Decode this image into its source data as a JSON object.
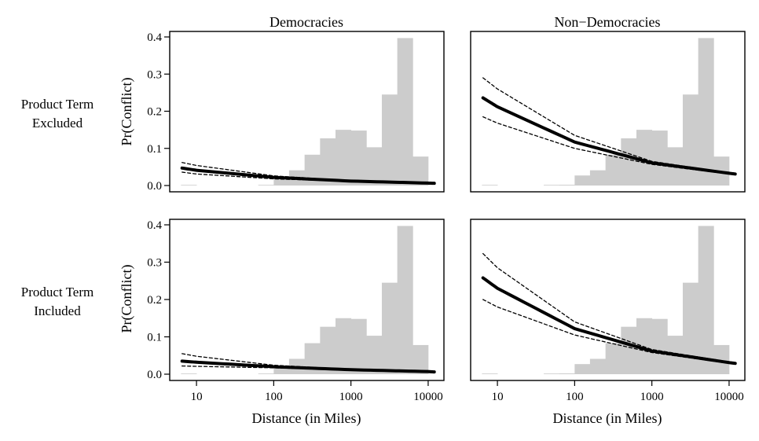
{
  "figure": {
    "col_titles": [
      "Democracies",
      "Non−Democracies"
    ],
    "row_labels": [
      [
        "Product Term",
        "Excluded"
      ],
      [
        "Product Term",
        "Included"
      ]
    ],
    "ylabel": "Pr(Conflict)",
    "xlabel": "Distance (in Miles)",
    "colors": {
      "histogram": "#cccccc",
      "curve": "#000000",
      "frame": "#000000"
    }
  },
  "chart_data": [
    {
      "type": "line",
      "panel": "Democracies / Product Term Excluded",
      "x_scale": "log",
      "xlim": [
        4.5,
        16000
      ],
      "ylim": [
        0,
        0.4
      ],
      "xticks": [
        10,
        100,
        1000,
        10000
      ],
      "xtick_labels": [
        "10",
        "100",
        "1000",
        "10000"
      ],
      "yticks": [
        0.0,
        0.1,
        0.2,
        0.3,
        0.4
      ],
      "ytick_labels": [
        "0.0",
        "0.1",
        "0.2",
        "0.3",
        "0.4"
      ],
      "show_x_ticklabels": false,
      "show_y_ticklabels": true,
      "histogram": {
        "bin_edges": [
          6.3,
          10,
          15.8,
          25.1,
          39.8,
          63.1,
          100,
          158,
          251,
          398,
          631,
          1000,
          1585,
          2512,
          3981,
          6310,
          10000
        ],
        "values": [
          0.001,
          0,
          0,
          0,
          0,
          0.001,
          0.02,
          0.041,
          0.083,
          0.127,
          0.15,
          0.148,
          0.103,
          0.245,
          0.397,
          0.078
        ]
      },
      "series": [
        {
          "role": "estimate",
          "style": "solid",
          "x": [
            6.5,
            10,
            100,
            1000,
            10000,
            12000
          ],
          "y": [
            0.047,
            0.041,
            0.022,
            0.012,
            0.0065,
            0.006
          ]
        },
        {
          "role": "upper",
          "style": "dashed",
          "x": [
            6.5,
            10,
            100,
            1000,
            10000,
            12000
          ],
          "y": [
            0.062,
            0.054,
            0.026,
            0.013,
            0.0075,
            0.007
          ]
        },
        {
          "role": "lower",
          "style": "dashed",
          "x": [
            6.5,
            10,
            100,
            1000,
            10000,
            12000
          ],
          "y": [
            0.036,
            0.031,
            0.018,
            0.011,
            0.0055,
            0.005
          ]
        }
      ]
    },
    {
      "type": "line",
      "panel": "Non-Democracies / Product Term Excluded",
      "x_scale": "log",
      "xlim": [
        4.5,
        16000
      ],
      "ylim": [
        0,
        0.4
      ],
      "xticks": [
        10,
        100,
        1000,
        10000
      ],
      "xtick_labels": [
        "10",
        "100",
        "1000",
        "10000"
      ],
      "yticks": [
        0.0,
        0.1,
        0.2,
        0.3,
        0.4
      ],
      "ytick_labels": [
        "0.0",
        "0.1",
        "0.2",
        "0.3",
        "0.4"
      ],
      "show_x_ticklabels": false,
      "show_y_ticklabels": false,
      "histogram": {
        "bin_edges": [
          6.3,
          10,
          15.8,
          25.1,
          39.8,
          63.1,
          100,
          158,
          251,
          398,
          631,
          1000,
          1585,
          2512,
          3981,
          6310,
          10000
        ],
        "values": [
          0.001,
          0,
          0,
          0,
          0.001,
          0.002,
          0.027,
          0.041,
          0.083,
          0.127,
          0.15,
          0.148,
          0.103,
          0.245,
          0.397,
          0.078
        ]
      },
      "series": [
        {
          "role": "estimate",
          "style": "solid",
          "x": [
            6.5,
            10,
            100,
            1000,
            10000,
            12000
          ],
          "y": [
            0.236,
            0.212,
            0.117,
            0.061,
            0.033,
            0.031
          ]
        },
        {
          "role": "upper",
          "style": "dashed",
          "x": [
            6.5,
            10,
            100,
            1000,
            10000,
            12000
          ],
          "y": [
            0.29,
            0.26,
            0.135,
            0.065,
            0.034,
            0.032
          ]
        },
        {
          "role": "lower",
          "style": "dashed",
          "x": [
            6.5,
            10,
            100,
            1000,
            10000,
            12000
          ],
          "y": [
            0.185,
            0.168,
            0.1,
            0.057,
            0.031,
            0.03
          ]
        }
      ]
    },
    {
      "type": "line",
      "panel": "Democracies / Product Term Included",
      "x_scale": "log",
      "xlim": [
        4.5,
        16000
      ],
      "ylim": [
        0,
        0.4
      ],
      "xticks": [
        10,
        100,
        1000,
        10000
      ],
      "xtick_labels": [
        "10",
        "100",
        "1000",
        "10000"
      ],
      "yticks": [
        0.0,
        0.1,
        0.2,
        0.3,
        0.4
      ],
      "ytick_labels": [
        "0.0",
        "0.1",
        "0.2",
        "0.3",
        "0.4"
      ],
      "show_x_ticklabels": true,
      "show_y_ticklabels": true,
      "histogram": {
        "bin_edges": [
          6.3,
          10,
          15.8,
          25.1,
          39.8,
          63.1,
          100,
          158,
          251,
          398,
          631,
          1000,
          1585,
          2512,
          3981,
          6310,
          10000
        ],
        "values": [
          0.001,
          0,
          0,
          0,
          0,
          0.001,
          0.02,
          0.041,
          0.083,
          0.127,
          0.15,
          0.148,
          0.103,
          0.245,
          0.397,
          0.078
        ]
      },
      "series": [
        {
          "role": "estimate",
          "style": "solid",
          "x": [
            6.5,
            10,
            100,
            1000,
            10000,
            12000
          ],
          "y": [
            0.035,
            0.032,
            0.02,
            0.012,
            0.007,
            0.006
          ]
        },
        {
          "role": "upper",
          "style": "dashed",
          "x": [
            6.5,
            10,
            100,
            1000,
            10000,
            12000
          ],
          "y": [
            0.055,
            0.048,
            0.024,
            0.013,
            0.008,
            0.007
          ]
        },
        {
          "role": "lower",
          "style": "dashed",
          "x": [
            6.5,
            10,
            100,
            1000,
            10000,
            12000
          ],
          "y": [
            0.022,
            0.021,
            0.017,
            0.011,
            0.006,
            0.005
          ]
        }
      ]
    },
    {
      "type": "line",
      "panel": "Non-Democracies / Product Term Included",
      "x_scale": "log",
      "xlim": [
        4.5,
        16000
      ],
      "ylim": [
        0,
        0.4
      ],
      "xticks": [
        10,
        100,
        1000,
        10000
      ],
      "xtick_labels": [
        "10",
        "100",
        "1000",
        "10000"
      ],
      "yticks": [
        0.0,
        0.1,
        0.2,
        0.3,
        0.4
      ],
      "ytick_labels": [
        "0.0",
        "0.1",
        "0.2",
        "0.3",
        "0.4"
      ],
      "show_x_ticklabels": true,
      "show_y_ticklabels": false,
      "histogram": {
        "bin_edges": [
          6.3,
          10,
          15.8,
          25.1,
          39.8,
          63.1,
          100,
          158,
          251,
          398,
          631,
          1000,
          1585,
          2512,
          3981,
          6310,
          10000
        ],
        "values": [
          0.001,
          0,
          0,
          0,
          0.001,
          0.002,
          0.027,
          0.041,
          0.083,
          0.127,
          0.15,
          0.148,
          0.103,
          0.245,
          0.397,
          0.078
        ]
      },
      "series": [
        {
          "role": "estimate",
          "style": "solid",
          "x": [
            6.5,
            10,
            100,
            1000,
            10000,
            12000
          ],
          "y": [
            0.258,
            0.23,
            0.122,
            0.062,
            0.031,
            0.029
          ]
        },
        {
          "role": "upper",
          "style": "dashed",
          "x": [
            6.5,
            10,
            100,
            1000,
            10000,
            12000
          ],
          "y": [
            0.323,
            0.285,
            0.14,
            0.066,
            0.033,
            0.031
          ]
        },
        {
          "role": "lower",
          "style": "dashed",
          "x": [
            6.5,
            10,
            100,
            1000,
            10000,
            12000
          ],
          "y": [
            0.2,
            0.18,
            0.105,
            0.058,
            0.029,
            0.027
          ]
        }
      ]
    }
  ]
}
